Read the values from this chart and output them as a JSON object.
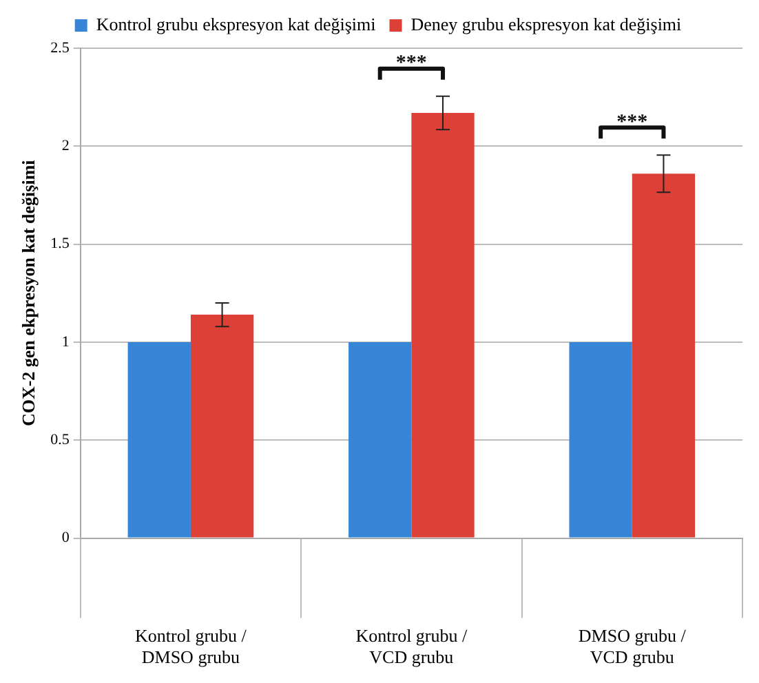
{
  "chart_data": {
    "type": "bar",
    "ylabel": "COX-2 gen ekpresyon kat değişimi",
    "categories": [
      "Kontrol grubu / DMSO grubu",
      "Kontrol grubu / VCD grubu",
      "DMSO grubu / VCD grubu"
    ],
    "series": [
      {
        "name": "Kontrol grubu ekspresyon kat değişimi",
        "color": "#3685d6",
        "values": [
          1,
          1,
          1
        ]
      },
      {
        "name": "Deney grubu ekspresyon kat değişimi",
        "color": "#dc4036",
        "values": [
          1.14,
          2.17,
          1.86
        ],
        "errors": [
          0.06,
          0.085,
          0.095
        ]
      }
    ],
    "annotations": [
      "***",
      "***"
    ],
    "ylim": [
      0,
      2.5
    ],
    "yticks": [
      0,
      0.5,
      1,
      1.5,
      2,
      2.5
    ],
    "grid": "y",
    "legend": "top"
  }
}
